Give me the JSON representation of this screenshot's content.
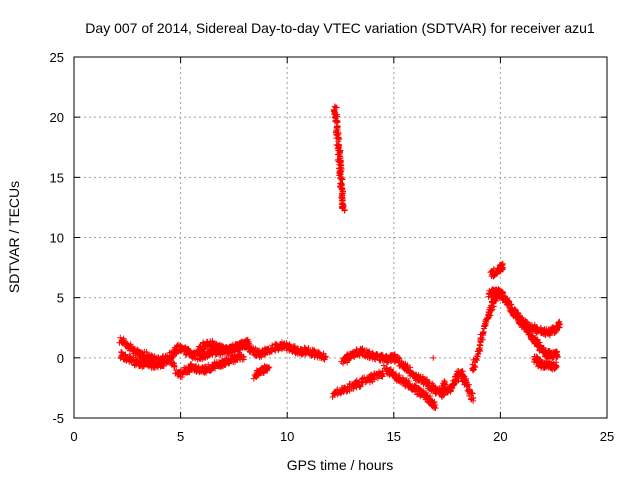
{
  "chart_data": {
    "type": "scatter",
    "title": "Day 007 of 2014, Sidereal Day-to-day VTEC variation (SDTVAR) for receiver azu1",
    "xlabel": "GPS time / hours",
    "ylabel": "SDTVAR / TECUs",
    "xlim": [
      0,
      25
    ],
    "ylim": [
      -5,
      25
    ],
    "xticks": [
      0,
      5,
      10,
      15,
      20,
      25
    ],
    "yticks": [
      -5,
      0,
      5,
      10,
      15,
      20,
      25
    ],
    "grid": true,
    "marker": "+",
    "series": [
      {
        "name": "SDTVAR",
        "color": "#ff0000",
        "segments": [
          {
            "x": [
              2.2,
              2.5,
              2.8,
              3.1,
              3.4,
              3.7,
              4.0,
              4.3,
              4.6,
              4.9,
              5.2,
              5.5,
              5.8,
              6.1,
              6.4,
              6.7,
              7.0,
              7.3,
              7.6,
              7.9,
              8.2,
              8.5,
              8.8,
              9.1,
              9.4,
              9.7,
              10.0,
              10.3,
              10.6,
              10.9,
              11.2,
              11.5,
              11.8
            ],
            "y": [
              1.5,
              1.0,
              0.6,
              0.3,
              0.2,
              -0.1,
              -0.3,
              -0.1,
              0.3,
              0.8,
              0.6,
              0.3,
              0.1,
              0.2,
              0.4,
              0.5,
              0.6,
              0.7,
              0.9,
              1.1,
              0.9,
              0.4,
              0.3,
              0.6,
              0.8,
              1.0,
              0.9,
              0.7,
              0.5,
              0.6,
              0.4,
              0.2,
              0.1
            ]
          },
          {
            "x": [
              2.2,
              2.5,
              2.8,
              3.1,
              3.4,
              3.7,
              4.0,
              4.3,
              4.6,
              4.9,
              5.2,
              5.5,
              5.8,
              6.1,
              6.4,
              6.7,
              7.0,
              7.3,
              7.6,
              7.9
            ],
            "y": [
              0.2,
              0.0,
              -0.3,
              -0.5,
              -0.4,
              -0.6,
              -0.5,
              -0.3,
              -0.2,
              -1.5,
              -1.1,
              -0.8,
              -0.9,
              -1.0,
              -0.8,
              -0.6,
              -0.4,
              -0.2,
              0.0,
              0.1
            ]
          },
          {
            "x": [
              5.8,
              6.1,
              6.4,
              6.7,
              7.0,
              7.3,
              7.6,
              7.9,
              8.2
            ],
            "y": [
              0.6,
              1.0,
              1.2,
              0.9,
              0.7,
              0.6,
              0.8,
              1.1,
              1.3
            ]
          },
          {
            "x": [
              8.5,
              8.7,
              8.9,
              9.1
            ],
            "y": [
              -1.6,
              -1.2,
              -1.0,
              -0.9
            ]
          },
          {
            "x": [
              12.25,
              12.3,
              12.35,
              12.4,
              12.45,
              12.5,
              12.55,
              12.6,
              12.65
            ],
            "y": [
              20.8,
              19.7,
              18.7,
              17.5,
              16.5,
              15.4,
              14.3,
              13.2,
              12.3
            ]
          },
          {
            "x": [
              12.2,
              12.6,
              13.0,
              13.4,
              13.8,
              14.2,
              14.5
            ],
            "y": [
              -3.0,
              -2.7,
              -2.4,
              -2.1,
              -1.8,
              -1.5,
              -1.3
            ]
          },
          {
            "x": [
              12.6,
              12.9,
              13.2,
              13.5,
              13.8,
              14.1,
              14.4,
              14.7,
              15.0,
              15.3,
              15.6,
              15.9,
              16.2,
              16.5,
              16.8,
              17.1,
              17.3
            ],
            "y": [
              -0.3,
              0.1,
              0.4,
              0.5,
              0.3,
              0.1,
              0.0,
              -0.1,
              0.0,
              -0.4,
              -0.9,
              -1.4,
              -1.7,
              -2.1,
              -2.5,
              -2.8,
              -3.0
            ]
          },
          {
            "x": [
              14.6,
              14.9,
              15.2,
              15.5,
              15.8,
              16.1,
              16.4,
              16.7,
              16.9
            ],
            "y": [
              -0.9,
              -1.3,
              -1.7,
              -2.0,
              -2.3,
              -2.7,
              -3.1,
              -3.5,
              -3.9
            ]
          },
          {
            "x": [
              16.85
            ],
            "y": [
              0.0
            ]
          },
          {
            "x": [
              17.3,
              17.5,
              17.7,
              17.9,
              18.1,
              18.3,
              18.5,
              18.7
            ],
            "y": [
              -2.2,
              -2.8,
              -2.5,
              -1.8,
              -1.2,
              -1.8,
              -2.6,
              -3.3
            ]
          },
          {
            "x": [
              18.7,
              18.9,
              19.1,
              19.3,
              19.5,
              19.7,
              19.9
            ],
            "y": [
              -1.0,
              0.2,
              1.5,
              2.8,
              3.8,
              4.6,
              5.3
            ]
          },
          {
            "x": [
              19.6,
              19.8,
              20.0,
              20.1
            ],
            "y": [
              6.9,
              7.2,
              7.5,
              7.6
            ]
          },
          {
            "x": [
              19.5,
              19.7,
              19.9,
              20.1,
              20.3,
              20.5,
              20.7,
              20.9,
              21.1,
              21.3,
              21.5,
              21.7,
              21.9,
              22.1,
              22.3,
              22.5,
              22.7
            ],
            "y": [
              5.3,
              5.6,
              5.5,
              5.2,
              4.7,
              4.2,
              3.7,
              3.2,
              2.7,
              2.2,
              1.7,
              1.2,
              0.8,
              0.4,
              0.3,
              0.2,
              0.3
            ]
          },
          {
            "x": [
              20.5,
              20.8,
              21.1,
              21.4,
              21.7,
              22.0,
              22.3,
              22.6,
              22.8
            ],
            "y": [
              3.9,
              3.4,
              2.9,
              2.6,
              2.3,
              2.2,
              2.1,
              2.4,
              2.8
            ]
          },
          {
            "x": [
              21.6,
              21.8,
              22.0,
              22.2,
              22.4,
              22.6
            ],
            "y": [
              0.0,
              -0.4,
              -0.6,
              -0.5,
              -0.7,
              -0.6
            ]
          }
        ]
      }
    ]
  }
}
